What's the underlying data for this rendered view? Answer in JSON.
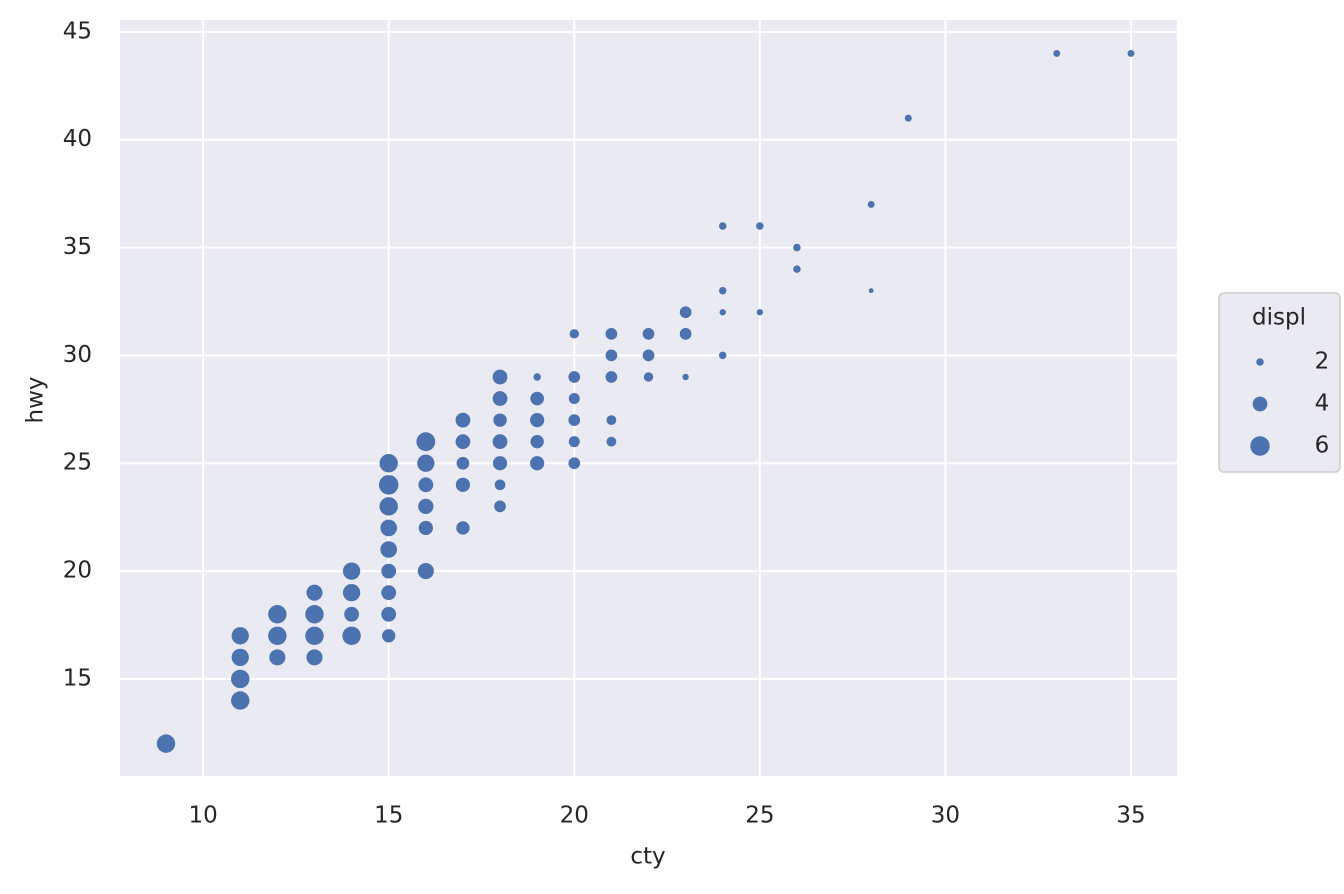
{
  "chart_data": {
    "type": "scatter",
    "xlabel": "cty",
    "ylabel": "hwy",
    "color": "#4c72b0",
    "background": "#eaeaf2",
    "grid": true,
    "xlim": [
      7.76,
      36.24
    ],
    "ylim": [
      10.5,
      45.55
    ],
    "xticks": [
      10,
      15,
      20,
      25,
      30,
      35
    ],
    "yticks": [
      15,
      20,
      25,
      30,
      35,
      40,
      45
    ],
    "series": [
      {
        "name": "displ",
        "x": [
          9,
          11,
          11,
          11,
          11,
          12,
          12,
          12,
          13,
          13,
          13,
          13,
          14,
          14,
          14,
          14,
          15,
          15,
          15,
          15,
          15,
          15,
          15,
          15,
          15,
          16,
          16,
          16,
          16,
          16,
          16,
          17,
          17,
          17,
          17,
          17,
          18,
          18,
          18,
          18,
          18,
          18,
          18,
          19,
          19,
          19,
          19,
          19,
          20,
          20,
          20,
          20,
          20,
          20,
          21,
          21,
          21,
          21,
          21,
          22,
          22,
          22,
          23,
          23,
          23,
          24,
          24,
          24,
          24,
          25,
          25,
          26,
          26,
          28,
          28,
          29,
          33,
          35
        ],
        "values": [
          12,
          17,
          16,
          15,
          14,
          18,
          17,
          16,
          19,
          18,
          17,
          16,
          20,
          19,
          18,
          17,
          25,
          24,
          23,
          22,
          21,
          20,
          19,
          18,
          17,
          26,
          25,
          24,
          23,
          22,
          20,
          27,
          26,
          25,
          24,
          22,
          29,
          28,
          27,
          26,
          25,
          24,
          23,
          29,
          28,
          27,
          26,
          25,
          31,
          29,
          28,
          27,
          26,
          25,
          31,
          30,
          29,
          27,
          26,
          31,
          30,
          29,
          32,
          31,
          29,
          36,
          33,
          32,
          30,
          36,
          32,
          35,
          34,
          37,
          33,
          41,
          44,
          44
        ],
        "sizes": [
          5.5,
          5,
          5,
          5.5,
          5.5,
          5.5,
          5.5,
          4.5,
          4.5,
          5.5,
          5.5,
          4.5,
          5,
          5,
          4,
          5.5,
          5.5,
          6,
          5.5,
          4.7,
          4.7,
          4,
          4,
          4,
          3.5,
          5.7,
          5,
          4,
          4.2,
          3.8,
          4.5,
          4,
          4,
          3.3,
          3.8,
          3.5,
          4,
          4,
          3.5,
          4,
          3.8,
          2.7,
          3,
          2,
          3.6,
          3.8,
          3.5,
          3.8,
          2.4,
          3,
          2.8,
          3,
          2.8,
          3,
          3,
          3,
          3,
          2.5,
          2.5,
          3,
          3,
          2.4,
          3,
          3,
          1.8,
          2,
          2,
          1.8,
          2,
          2,
          1.8,
          2,
          2,
          1.9,
          1.6,
          1.9,
          1.9,
          1.9
        ]
      }
    ],
    "size_legend": {
      "title": "displ",
      "values": [
        2,
        4,
        6
      ]
    }
  }
}
